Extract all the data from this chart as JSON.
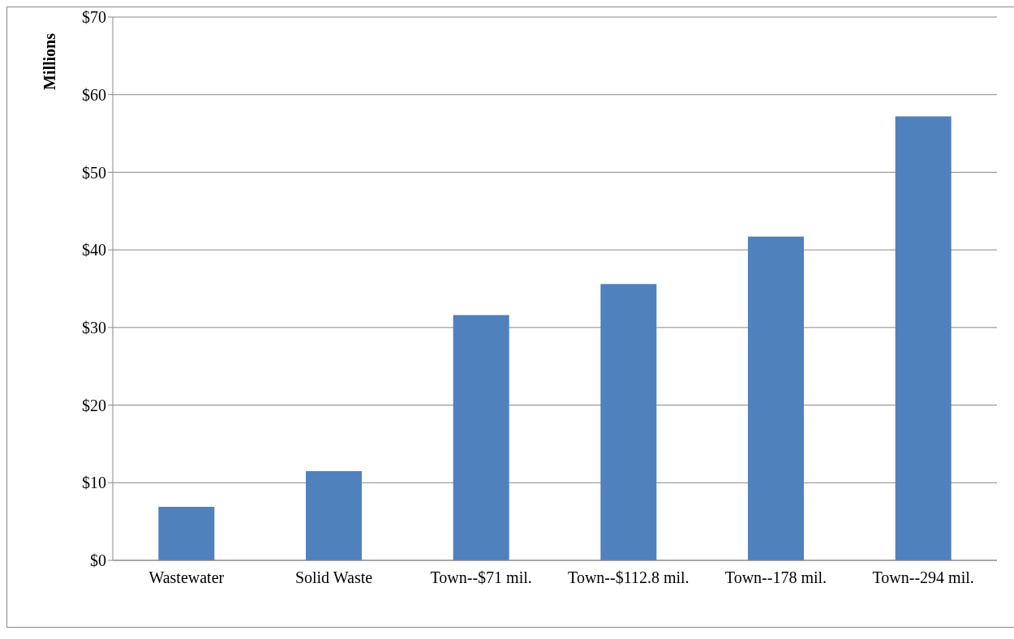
{
  "chart_data": {
    "type": "bar",
    "ylabel": "Millions",
    "categories": [
      "Wastewater",
      "Solid Waste",
      "Town--$71 mil.",
      "Town--$112.8 mil.",
      "Town--178 mil.",
      "Town--294 mil."
    ],
    "values": [
      6.9,
      11.5,
      31.6,
      35.6,
      41.7,
      57.2
    ],
    "color": "#4f81bd",
    "ylim": [
      0,
      70
    ],
    "yticks": [
      {
        "value": 0,
        "label": "$0"
      },
      {
        "value": 10,
        "label": "$10"
      },
      {
        "value": 20,
        "label": "$20"
      },
      {
        "value": 30,
        "label": "$30"
      },
      {
        "value": 40,
        "label": "$40"
      },
      {
        "value": 50,
        "label": "$50"
      },
      {
        "value": 60,
        "label": "$60"
      },
      {
        "value": 70,
        "label": "$70"
      }
    ],
    "grid": "y",
    "legend": false
  }
}
